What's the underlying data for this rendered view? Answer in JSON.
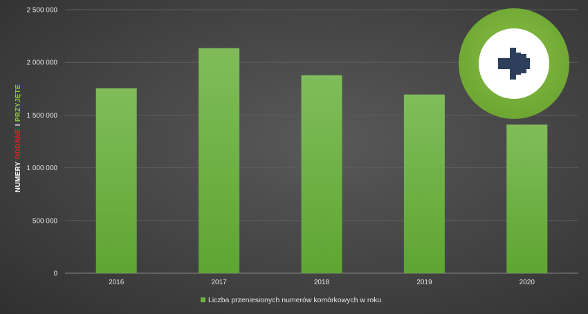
{
  "chart_data": {
    "type": "bar",
    "categories": [
      "2016",
      "2017",
      "2018",
      "2019",
      "2020"
    ],
    "series": [
      {
        "name": "Liczba przeniesionych numerów komórkowych w roku",
        "values": [
          1755000,
          2135000,
          1878000,
          1695000,
          1410000
        ]
      }
    ],
    "ylim": [
      0,
      2500000
    ],
    "yticks": [
      "0",
      "500 000",
      "1 000 000",
      "1 500 000",
      "2 000 000",
      "2 500 000"
    ],
    "ylabel_parts": [
      "NUMERY ",
      "ODDANE",
      " I ",
      "PRZYJĘTE"
    ],
    "grid": true,
    "legend_position": "bottom"
  },
  "colors": {
    "bar": "#6fb043",
    "bar_top": "#7fbd58",
    "ylabel_white": "#ffffff",
    "ylabel_red": "#e02020",
    "ylabel_green": "#8cc63f",
    "badge_ring": "#7bb33a",
    "badge_inner": "#ffffff",
    "arrow": "#2e3f5c"
  },
  "badge": {
    "icon": "arrow-right-icon"
  }
}
